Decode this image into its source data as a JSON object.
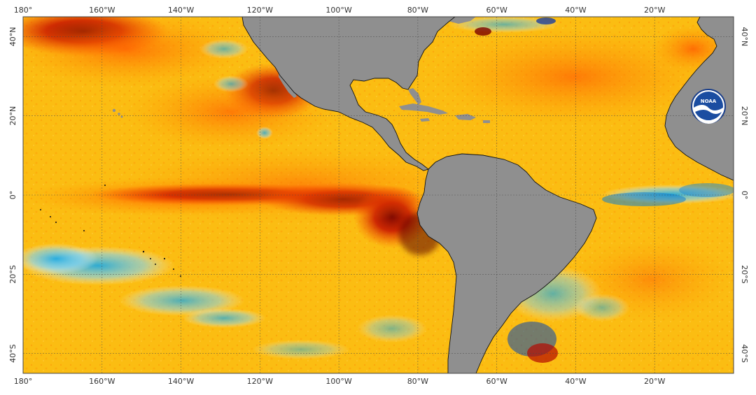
{
  "map": {
    "projection": "equirectangular",
    "lon_range": [
      -180,
      0
    ],
    "lat_range": [
      -45,
      45
    ],
    "grid": true,
    "land_color": "#8f8f8f",
    "ocean_base_color": "#f9c51c",
    "coastline_color": "#111111",
    "logo": {
      "name": "noaa-logo",
      "text": "NOAA",
      "placement": "right, near 20°N"
    },
    "x_ticks_top": [
      {
        "lon": -180,
        "label": "180°"
      },
      {
        "lon": -160,
        "label": "160°W"
      },
      {
        "lon": -140,
        "label": "140°W"
      },
      {
        "lon": -120,
        "label": "120°W"
      },
      {
        "lon": -100,
        "label": "100°W"
      },
      {
        "lon": -80,
        "label": "80°W"
      },
      {
        "lon": -60,
        "label": "60°W"
      },
      {
        "lon": -40,
        "label": "40°W"
      },
      {
        "lon": -20,
        "label": "20°W"
      }
    ],
    "x_ticks_bottom": [
      {
        "lon": -180,
        "label": "180°"
      },
      {
        "lon": -160,
        "label": "160°W"
      },
      {
        "lon": -140,
        "label": "140°W"
      },
      {
        "lon": -120,
        "label": "120°W"
      },
      {
        "lon": -100,
        "label": "100°W"
      },
      {
        "lon": -80,
        "label": "80°W"
      },
      {
        "lon": -60,
        "label": "60°W"
      },
      {
        "lon": -40,
        "label": "40°W"
      },
      {
        "lon": -20,
        "label": "20°W"
      }
    ],
    "y_ticks_left": [
      {
        "lat": 40,
        "label": "40°N"
      },
      {
        "lat": 20,
        "label": "20°N"
      },
      {
        "lat": 0,
        "label": "0°"
      },
      {
        "lat": -20,
        "label": "20°S"
      },
      {
        "lat": -40,
        "label": "40°S"
      }
    ],
    "y_ticks_right": [
      {
        "lat": 40,
        "label": "40°N"
      },
      {
        "lat": 20,
        "label": "20°N"
      },
      {
        "lat": 0,
        "label": "0°"
      },
      {
        "lat": -20,
        "label": "20°S"
      },
      {
        "lat": -40,
        "label": "40°S"
      }
    ]
  }
}
